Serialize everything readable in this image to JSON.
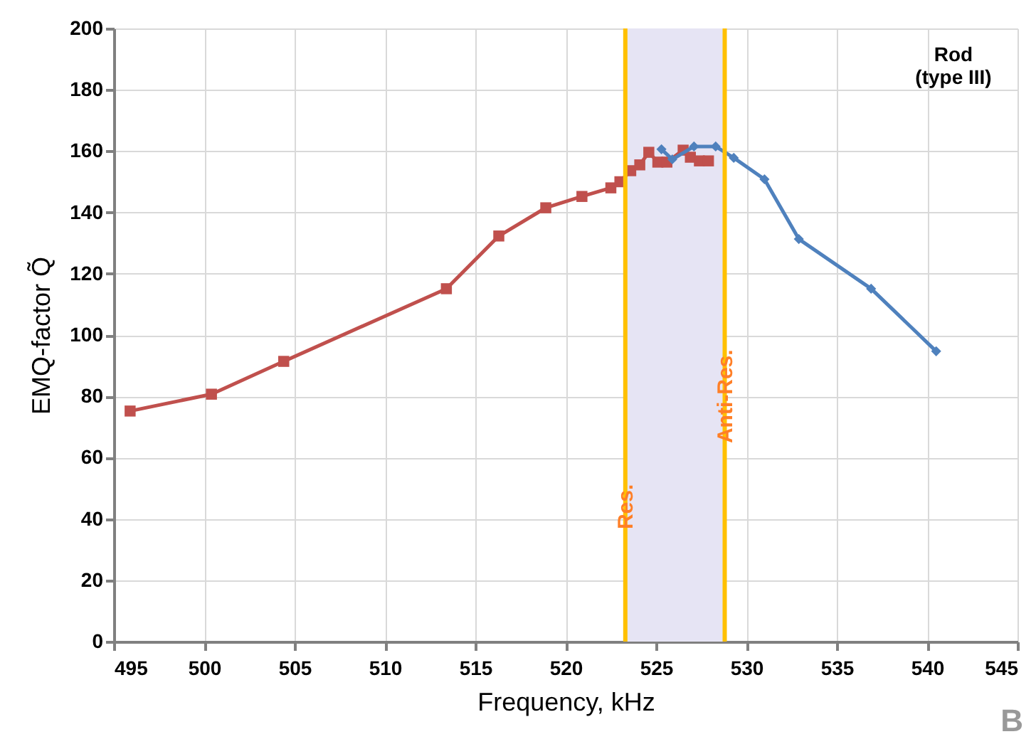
{
  "chart_data": {
    "type": "line",
    "xlabel": "Frequency, kHz",
    "ylabel": "EMQ-factor Q̃",
    "xlim": [
      495,
      545
    ],
    "xticks": [
      495,
      500,
      505,
      510,
      515,
      520,
      525,
      530,
      535,
      540,
      545
    ],
    "ylim": [
      0,
      200
    ],
    "yticks": [
      0,
      20,
      40,
      60,
      80,
      100,
      120,
      140,
      160,
      180,
      200
    ],
    "grid": true,
    "series": [
      {
        "color": "#c0504d",
        "marker": "square",
        "x": [
          495.9,
          500.4,
          504.4,
          513.4,
          516.3,
          518.9,
          520.9,
          522.5,
          523.0,
          523.6,
          524.1,
          524.6,
          525.1,
          525.6,
          526.5,
          526.9,
          527.4,
          527.9
        ],
        "values": [
          75.2,
          80.7,
          91.4,
          115.1,
          132.3,
          141.5,
          145.2,
          148,
          150,
          153.6,
          155.5,
          159.6,
          156.4,
          156.4,
          160.3,
          158,
          156.8,
          156.8
        ]
      },
      {
        "color": "#4f81bd",
        "marker": "diamond",
        "x": [
          525.3,
          525.9,
          527.1,
          528.3,
          529.3,
          531.0,
          532.9,
          536.9,
          540.5
        ],
        "values": [
          160.6,
          157.3,
          161.5,
          161.5,
          157.8,
          150.8,
          131.3,
          115.1,
          94.7
        ]
      }
    ],
    "bands": [
      {
        "axis": "x",
        "from": 523.3,
        "to": 528.8,
        "color": "#e6e4f4"
      }
    ],
    "ref_lines": [
      {
        "axis": "x",
        "value": 523.3,
        "label": "Res.",
        "color": "#ffc000"
      },
      {
        "axis": "x",
        "value": 528.8,
        "label": "Anti-Res.",
        "color": "#ffc000"
      }
    ],
    "annotations": [
      "Rod\n(type III)",
      "B"
    ]
  }
}
